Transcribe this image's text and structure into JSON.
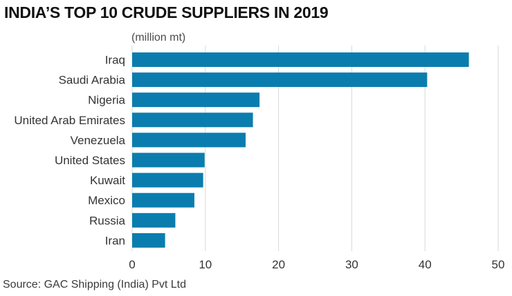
{
  "title": "INDIA’S TOP 10 CRUDE SUPPLIERS IN 2019",
  "unit": "(million mt)",
  "source": "Source: GAC Shipping (India) Pvt Ltd",
  "colors": {
    "bar": "#0a7dae",
    "grid": "#d9d9d9"
  },
  "chart_data": {
    "type": "bar",
    "orientation": "horizontal",
    "title": "INDIA’S TOP 10 CRUDE SUPPLIERS IN 2019",
    "xlabel": "",
    "ylabel": "",
    "unit": "(million mt)",
    "categories": [
      "Iraq",
      "Saudi Arabia",
      "Nigeria",
      "United Arab Emirates",
      "Venezuela",
      "United States",
      "Kuwait",
      "Mexico",
      "Russia",
      "Iran"
    ],
    "values": [
      46.0,
      40.3,
      17.4,
      16.5,
      15.5,
      9.9,
      9.7,
      8.5,
      5.9,
      4.5
    ],
    "xlim": [
      0,
      50
    ],
    "xticks": [
      0,
      10,
      20,
      30,
      40,
      50
    ],
    "grid": "vertical",
    "legend": "none"
  }
}
